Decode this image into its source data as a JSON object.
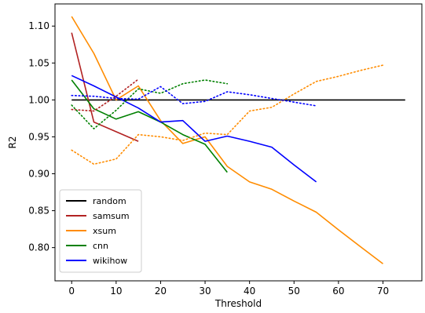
{
  "chart_data": {
    "type": "line",
    "xlabel": "Threshold",
    "ylabel": "R2",
    "xlim": [
      -3.75,
      78.75
    ],
    "ylim": [
      0.755,
      1.13
    ],
    "xticks": [
      0,
      10,
      20,
      30,
      40,
      50,
      60,
      70
    ],
    "yticks": [
      0.8,
      0.85,
      0.9,
      0.95,
      1.0,
      1.05,
      1.1
    ],
    "ytick_labels": [
      "0.80",
      "0.85",
      "0.90",
      "0.95",
      "1.00",
      "1.05",
      "1.10"
    ],
    "legend_position": "lower-left",
    "series": [
      {
        "name": "random",
        "color": "#000000",
        "style": "solid",
        "x": [
          0,
          75
        ],
        "y": [
          1.0,
          1.0
        ]
      },
      {
        "name": "samsum",
        "color": "#b22222",
        "style": "solid",
        "x": [
          0,
          5,
          10,
          15
        ],
        "y": [
          1.091,
          0.97,
          0.957,
          0.944
        ]
      },
      {
        "name": "xsum",
        "color": "#ff8c00",
        "style": "solid",
        "x": [
          0,
          5,
          10,
          15,
          20,
          25,
          30,
          35,
          40,
          45,
          50,
          55,
          60,
          65,
          70
        ],
        "y": [
          1.113,
          1.063,
          1.0,
          1.019,
          0.972,
          0.941,
          0.95,
          0.91,
          0.889,
          0.879,
          0.863,
          0.848,
          0.824,
          0.801,
          0.778
        ]
      },
      {
        "name": "cnn",
        "color": "#008000",
        "style": "solid",
        "x": [
          0,
          5,
          10,
          15,
          20,
          25,
          30,
          35
        ],
        "y": [
          1.027,
          0.988,
          0.974,
          0.984,
          0.97,
          0.953,
          0.94,
          0.902
        ]
      },
      {
        "name": "wikihow",
        "color": "#0000ff",
        "style": "solid",
        "x": [
          0,
          5,
          10,
          15,
          20,
          25,
          30,
          35,
          40,
          45,
          50,
          55
        ],
        "y": [
          1.033,
          1.019,
          1.004,
          0.989,
          0.97,
          0.972,
          0.944,
          0.951,
          0.944,
          0.936,
          0.912,
          0.889
        ]
      },
      {
        "color": "#b22222",
        "style": "dotted",
        "x": [
          0,
          5,
          10,
          15
        ],
        "y": [
          0.987,
          0.985,
          1.005,
          1.028
        ]
      },
      {
        "color": "#ff8c00",
        "style": "dotted",
        "x": [
          0,
          5,
          10,
          15,
          20,
          25,
          30,
          35,
          40,
          45,
          50,
          55,
          60,
          65,
          70
        ],
        "y": [
          0.932,
          0.913,
          0.92,
          0.953,
          0.95,
          0.945,
          0.955,
          0.953,
          0.985,
          0.99,
          1.008,
          1.025,
          1.032,
          1.04,
          1.047
        ]
      },
      {
        "color": "#008000",
        "style": "dotted",
        "x": [
          0,
          5,
          10,
          15,
          20,
          25,
          30,
          35
        ],
        "y": [
          0.993,
          0.961,
          0.986,
          1.015,
          1.009,
          1.022,
          1.027,
          1.022
        ]
      },
      {
        "color": "#0000ff",
        "style": "dotted",
        "x": [
          0,
          5,
          10,
          15,
          20,
          25,
          30,
          35,
          40,
          45,
          50,
          55
        ],
        "y": [
          1.006,
          1.005,
          1.002,
          1.001,
          1.018,
          0.995,
          0.998,
          1.011,
          1.007,
          1.002,
          0.997,
          0.992
        ]
      }
    ]
  }
}
